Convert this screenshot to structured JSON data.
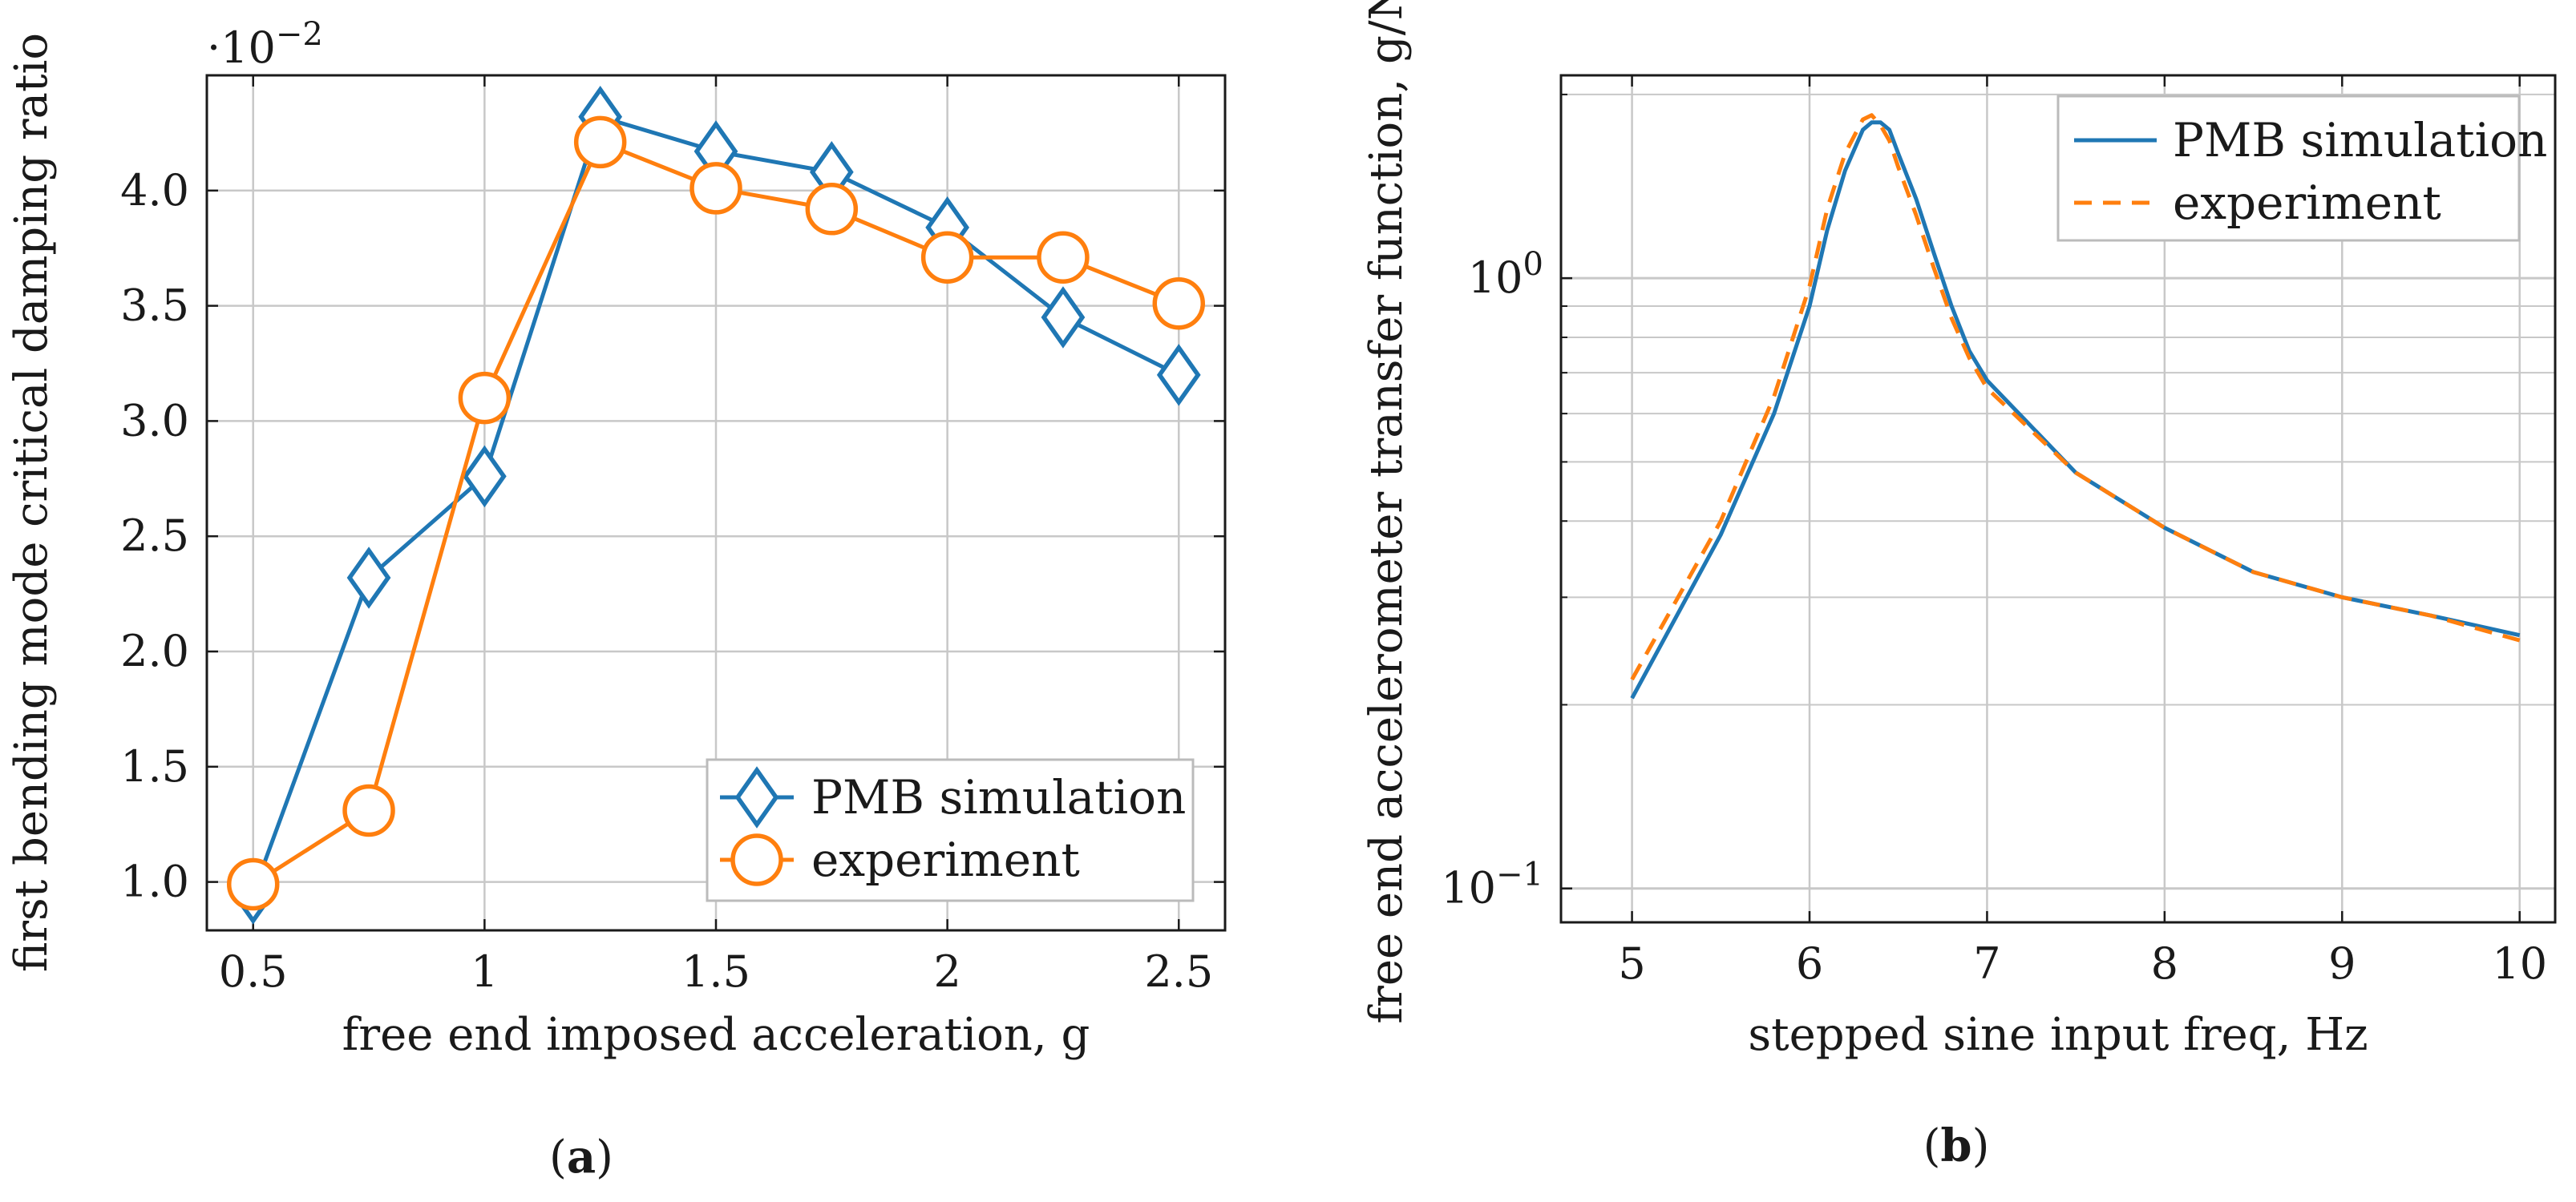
{
  "chart_data": [
    {
      "type": "line",
      "title": "",
      "xlabel": "free end imposed acceleration, g",
      "ylabel": "first bending mode critical damping ratio",
      "y_multiplier": "·10",
      "y_multiplier_exp": "−2",
      "caption_label": "a",
      "xlim": [
        0.4,
        2.6
      ],
      "ylim": [
        0.79,
        4.5
      ],
      "xticks": [
        0.5,
        1,
        1.5,
        2,
        2.5
      ],
      "xtick_labels": [
        "0.5",
        "1",
        "1.5",
        "2",
        "2.5"
      ],
      "yticks": [
        1.0,
        1.5,
        2.0,
        2.5,
        3.0,
        3.5,
        4.0
      ],
      "ytick_labels": [
        "1.0",
        "1.5",
        "2.0",
        "2.5",
        "3.0",
        "3.5",
        "4.0"
      ],
      "grid": true,
      "legend_position": "bottom-right",
      "series": [
        {
          "name": "PMB simulation",
          "color": "#1f77b4",
          "marker": "diamond",
          "x": [
            0.5,
            0.75,
            1.0,
            1.25,
            1.5,
            1.75,
            2.0,
            2.25,
            2.5
          ],
          "y": [
            0.95,
            2.32,
            2.76,
            4.32,
            4.17,
            4.08,
            3.84,
            3.45,
            3.2
          ]
        },
        {
          "name": "experiment",
          "color": "#ff7f0e",
          "marker": "circle",
          "x": [
            0.5,
            0.75,
            1.0,
            1.25,
            1.5,
            1.75,
            2.0,
            2.25,
            2.5
          ],
          "y": [
            0.99,
            1.31,
            3.1,
            4.21,
            4.01,
            3.92,
            3.71,
            3.71,
            3.51
          ]
        }
      ]
    },
    {
      "type": "line",
      "title": "",
      "xlabel": "stepped sine input freq, Hz",
      "ylabel": "free end accelerometer transfer function, g/N",
      "caption_label": "b",
      "xscale": "linear",
      "yscale": "log",
      "xlim": [
        4.6,
        10.2
      ],
      "ylim": [
        0.088,
        2.15
      ],
      "xticks": [
        5,
        6,
        7,
        8,
        9,
        10
      ],
      "xtick_labels": [
        "5",
        "6",
        "7",
        "8",
        "9",
        "10"
      ],
      "yticks_major": [
        0.1,
        1
      ],
      "ytick_labels": [
        {
          "base": "10",
          "exp": "−1"
        },
        {
          "base": "10",
          "exp": "0"
        }
      ],
      "y_minor_ticks": [
        0.2,
        0.3,
        0.4,
        0.5,
        0.6,
        0.7,
        0.8,
        0.9,
        2.0
      ],
      "grid": true,
      "legend_position": "top-right",
      "series": [
        {
          "name": "PMB simulation",
          "color": "#1f77b4",
          "style": "solid",
          "x": [
            5.0,
            5.5,
            5.8,
            6.0,
            6.1,
            6.2,
            6.3,
            6.35,
            6.4,
            6.45,
            6.5,
            6.6,
            6.7,
            6.8,
            6.9,
            7.0,
            7.5,
            8.0,
            8.5,
            9.0,
            9.5,
            10.0
          ],
          "y": [
            0.205,
            0.38,
            0.6,
            0.9,
            1.2,
            1.5,
            1.75,
            1.8,
            1.8,
            1.75,
            1.6,
            1.35,
            1.1,
            0.9,
            0.76,
            0.68,
            0.48,
            0.39,
            0.33,
            0.3,
            0.28,
            0.26
          ]
        },
        {
          "name": "experiment",
          "color": "#ff7f0e",
          "style": "dashed",
          "x": [
            5.0,
            5.5,
            5.8,
            6.0,
            6.1,
            6.2,
            6.3,
            6.35,
            6.4,
            6.45,
            6.5,
            6.6,
            6.7,
            6.8,
            6.9,
            7.0,
            7.5,
            8.0,
            8.5,
            9.0,
            9.5,
            10.0
          ],
          "y": [
            0.22,
            0.4,
            0.64,
            0.97,
            1.3,
            1.6,
            1.82,
            1.85,
            1.78,
            1.68,
            1.52,
            1.27,
            1.04,
            0.86,
            0.74,
            0.66,
            0.48,
            0.39,
            0.33,
            0.3,
            0.28,
            0.255
          ]
        }
      ]
    }
  ]
}
